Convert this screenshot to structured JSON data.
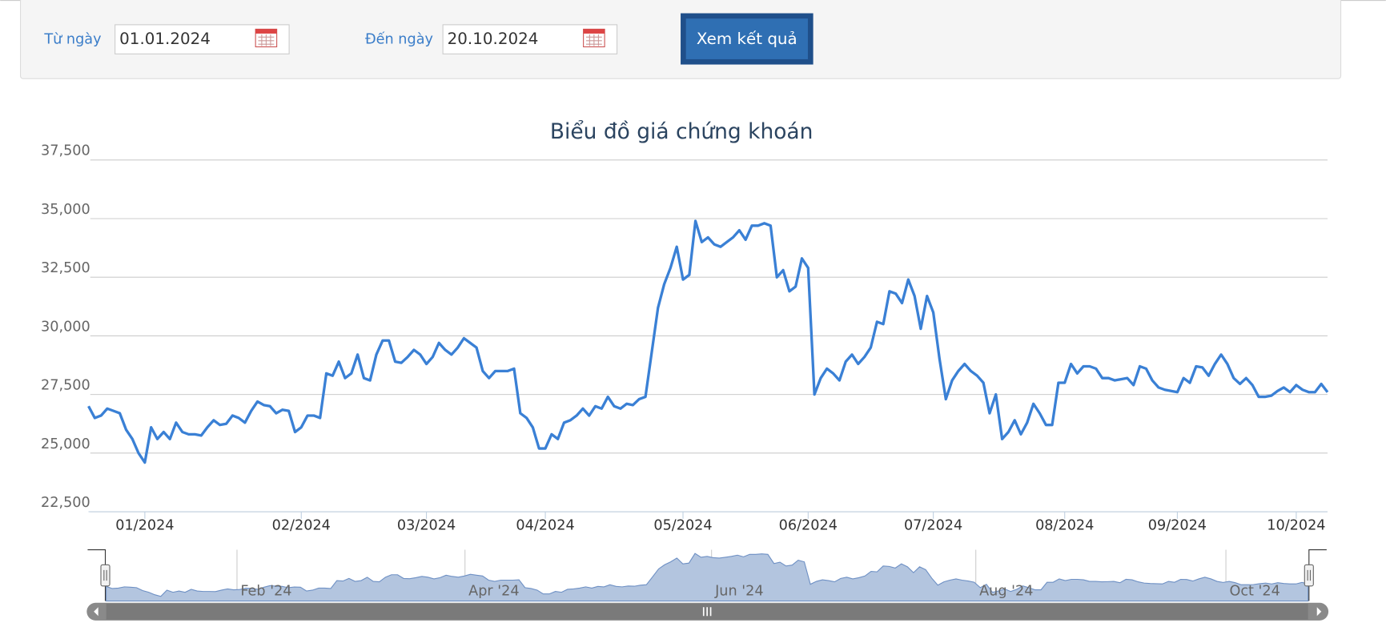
{
  "form": {
    "from_label": "Từ ngày",
    "from_date": "01.01.2024",
    "to_label": "Đến ngày",
    "to_date": "20.10.2024",
    "button": "Xem kết quả"
  },
  "chart_data": {
    "type": "line",
    "title": "Biểu đồ giá chứng khoán",
    "color": "#3a80d5",
    "grid": true,
    "ylim": [
      22500,
      37500
    ],
    "yticks": [
      {
        "value": 22500,
        "label": "22,500"
      },
      {
        "value": 25000,
        "label": "25,000"
      },
      {
        "value": 27500,
        "label": "27,500"
      },
      {
        "value": 30000,
        "label": "30,000"
      },
      {
        "value": 32500,
        "label": "32,500"
      },
      {
        "value": 35000,
        "label": "35,000"
      },
      {
        "value": 37500,
        "label": "37,500"
      }
    ],
    "categories": [
      null,
      null,
      null,
      null,
      null,
      null,
      null,
      null,
      null,
      "01/2024",
      null,
      null,
      null,
      null,
      null,
      null,
      null,
      null,
      null,
      null,
      null,
      null,
      null,
      null,
      null,
      null,
      null,
      null,
      null,
      null,
      null,
      null,
      null,
      null,
      "02/2024",
      null,
      null,
      null,
      null,
      null,
      null,
      null,
      null,
      null,
      null,
      null,
      null,
      null,
      null,
      null,
      null,
      null,
      null,
      null,
      "03/2024",
      null,
      null,
      null,
      null,
      null,
      null,
      null,
      null,
      null,
      null,
      null,
      null,
      null,
      null,
      null,
      null,
      null,
      null,
      "04/2024",
      null,
      null,
      null,
      null,
      null,
      null,
      null,
      null,
      null,
      null,
      null,
      null,
      null,
      null,
      null,
      null,
      null,
      null,
      null,
      null,
      null,
      "05/2024",
      null,
      null,
      null,
      null,
      null,
      null,
      null,
      null,
      null,
      null,
      null,
      null,
      null,
      null,
      null,
      null,
      null,
      null,
      null,
      "06/2024",
      null,
      null,
      null,
      null,
      null,
      null,
      null,
      null,
      null,
      null,
      null,
      null,
      null,
      null,
      null,
      null,
      null,
      null,
      null,
      "07/2024",
      null,
      null,
      null,
      null,
      null,
      null,
      null,
      null,
      null,
      null,
      null,
      null,
      null,
      null,
      null,
      null,
      null,
      null,
      null,
      null,
      "08/2024",
      null,
      null,
      null,
      null,
      null,
      null,
      null,
      null,
      null,
      null,
      null,
      null,
      null,
      null,
      null,
      null,
      null,
      "09/2024",
      null,
      null,
      null,
      null,
      null,
      null,
      null,
      null,
      null,
      null,
      null,
      null,
      null,
      null,
      null,
      null,
      null,
      null,
      "10/2024",
      null,
      null,
      null,
      null,
      null
    ],
    "values": [
      27000,
      26500,
      26600,
      26900,
      26800,
      26700,
      26000,
      25600,
      25000,
      24600,
      26100,
      25600,
      25900,
      25600,
      26300,
      25900,
      25800,
      25800,
      25750,
      26100,
      26400,
      26200,
      26250,
      26600,
      26500,
      26300,
      26800,
      27200,
      27050,
      27000,
      26700,
      26850,
      26800,
      25900,
      26100,
      26600,
      26600,
      26500,
      28400,
      28300,
      28900,
      28200,
      28400,
      29200,
      28200,
      28100,
      29200,
      29800,
      29800,
      28900,
      28850,
      29100,
      29400,
      29200,
      28800,
      29100,
      29700,
      29400,
      29200,
      29500,
      29900,
      29700,
      29500,
      28500,
      28200,
      28500,
      28500,
      28500,
      28600,
      26700,
      26500,
      26100,
      25200,
      25200,
      25800,
      25600,
      26300,
      26400,
      26600,
      26900,
      26600,
      27000,
      26900,
      27400,
      27000,
      26900,
      27100,
      27050,
      27300,
      27400,
      29300,
      31200,
      32200,
      32900,
      33800,
      32400,
      32600,
      34900,
      34000,
      34200,
      33900,
      33800,
      34000,
      34200,
      34500,
      34100,
      34700,
      34700,
      34800,
      34700,
      32500,
      32800,
      31900,
      32100,
      33300,
      32900,
      27500,
      28200,
      28600,
      28400,
      28100,
      28900,
      29200,
      28800,
      29100,
      29500,
      30600,
      30500,
      31900,
      31800,
      31400,
      32400,
      31700,
      30300,
      31700,
      31000,
      29000,
      27300,
      28100,
      28500,
      28800,
      28500,
      28300,
      28000,
      26700,
      27500,
      25600,
      25900,
      26400,
      25800,
      26300,
      27100,
      26700,
      26200,
      26200,
      28000,
      28000,
      28800,
      28400,
      28700,
      28700,
      28600,
      28200,
      28200,
      28100,
      28150,
      28200,
      27900,
      28700,
      28600,
      28100,
      27800,
      27700,
      27650,
      27600,
      28200,
      28000,
      28700,
      28650,
      28300,
      28800,
      29200,
      28800,
      28200,
      27950,
      28200,
      27900,
      27400,
      27400,
      27450,
      27650,
      27800,
      27600,
      27900,
      27700,
      27600,
      27600,
      27950,
      27600
    ],
    "navigator_labels": [
      "Feb '24",
      "Apr '24",
      "Jun '24",
      "Aug '24",
      "Oct '24"
    ]
  }
}
